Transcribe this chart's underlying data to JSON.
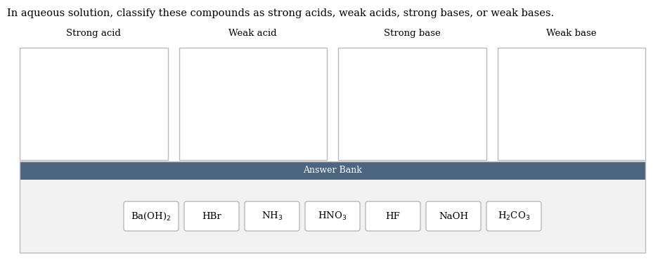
{
  "title": "In aqueous solution, classify these compounds as strong acids, weak acids, strong bases, or weak bases.",
  "title_fontsize": 10.5,
  "categories": [
    "Strong acid",
    "Weak acid",
    "Strong base",
    "Weak base"
  ],
  "answer_bank_label": "Answer Bank",
  "answer_bank_bg": "#4d6680",
  "answer_bank_items_bg": "#f2f2f2",
  "answer_bank_border": "#bbbbbb",
  "answer_bank_items": [
    "Ba(OH)$_2$",
    "HBr",
    "NH$_3$",
    "HNO$_3$",
    "HF",
    "NaOH",
    "H$_2$CO$_3$"
  ],
  "box_border_color": "#bbbbbb",
  "box_fill_color": "#ffffff",
  "bg_color": "#ffffff",
  "font_family": "DejaVu Serif",
  "category_fontsize": 9.5,
  "item_fontsize": 9.5,
  "fig_width": 9.46,
  "fig_height": 3.69,
  "dpi": 100
}
